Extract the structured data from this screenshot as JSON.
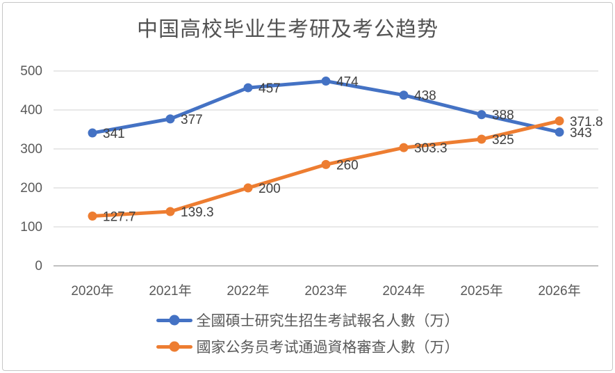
{
  "chart_data": {
    "type": "line",
    "title": "中国高校毕业生考研及考公趋势",
    "categories": [
      "2020年",
      "2021年",
      "2022年",
      "2023年",
      "2024年",
      "2025年",
      "2026年"
    ],
    "series": [
      {
        "name": "全國碩士研究生招生考試報名人數（万）",
        "color": "#4472C4",
        "values": [
          341,
          377,
          457,
          474,
          438,
          388,
          343
        ]
      },
      {
        "name": "國家公务员考试通過資格審查人數（万）",
        "color": "#ED7D31",
        "values": [
          127.7,
          139.3,
          200,
          260,
          303.3,
          325,
          371.8
        ]
      }
    ],
    "y_ticks": [
      0,
      100,
      200,
      300,
      400,
      500
    ],
    "ylim": [
      0,
      500
    ],
    "grid": true,
    "legend_position": "bottom",
    "colors": {
      "gridline": "#d9d9d9",
      "axis_line": "#c0c0c0",
      "axis_label": "#595959",
      "data_label": "#404040",
      "title": "#525252"
    }
  }
}
